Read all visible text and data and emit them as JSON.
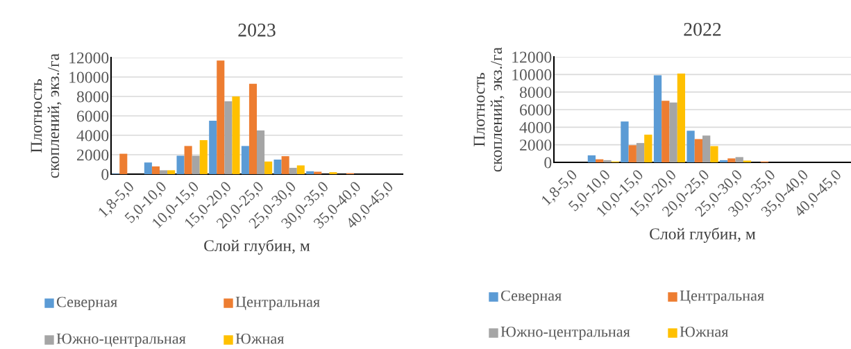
{
  "chart_data": [
    {
      "type": "bar",
      "title": "2023",
      "xlabel": "Слой глубин, м",
      "ylabel": "Плотность\nскоплений, экз./га",
      "categories": [
        "1,8-5,0",
        "5,0-10,0",
        "10,0-15,0",
        "15,0-20,0",
        "20,0-25,0",
        "25,0-30,0",
        "30,0-35,0",
        "35,0-40,0",
        "40,0-45,0"
      ],
      "series": [
        {
          "name": "Северная",
          "color": "#5b9bd5",
          "values": [
            50,
            1200,
            1900,
            5500,
            2900,
            1500,
            300,
            0,
            0
          ]
        },
        {
          "name": "Центральная",
          "color": "#ed7d31",
          "values": [
            2100,
            800,
            2900,
            11700,
            9300,
            1850,
            250,
            100,
            0
          ]
        },
        {
          "name": "Южно-центральная",
          "color": "#a5a5a5",
          "values": [
            null,
            400,
            1900,
            7500,
            4500,
            650,
            null,
            0,
            0
          ]
        },
        {
          "name": "Южная",
          "color": "#ffc000",
          "values": [
            0,
            400,
            3500,
            8000,
            1300,
            900,
            200,
            0,
            0
          ]
        }
      ],
      "ylim": [
        0,
        12000
      ],
      "yticks": [
        0,
        2000,
        4000,
        6000,
        8000,
        10000,
        12000
      ],
      "grid": "y",
      "legend": "bottom"
    },
    {
      "type": "bar",
      "title": "2022",
      "xlabel": "Слой глубин, м",
      "ylabel": "Плотность\nскоплений, экз./га",
      "categories": [
        "1,8-5,0",
        "5,0-10,0",
        "10,0-15,0",
        "15,0-20,0",
        "20,0-25,0",
        "25,0-30,0",
        "30,0-35,0",
        "35,0-40,0",
        "40,0-45,0"
      ],
      "series": [
        {
          "name": "Северная",
          "color": "#5b9bd5",
          "values": [
            0,
            800,
            4650,
            9900,
            3600,
            250,
            0,
            0,
            0
          ]
        },
        {
          "name": "Центральная",
          "color": "#ed7d31",
          "values": [
            0,
            350,
            1950,
            7000,
            2650,
            450,
            100,
            0,
            0
          ]
        },
        {
          "name": "Южно-центральная",
          "color": "#a5a5a5",
          "values": [
            0,
            250,
            2200,
            6800,
            3050,
            600,
            null,
            0,
            0
          ]
        },
        {
          "name": "Южная",
          "color": "#ffc000",
          "values": [
            0,
            100,
            3150,
            10100,
            1850,
            200,
            0,
            0,
            0
          ]
        }
      ],
      "ylim": [
        0,
        12000
      ],
      "yticks": [
        0,
        2000,
        4000,
        6000,
        8000,
        10000,
        12000
      ],
      "grid": "y",
      "legend": "bottom"
    }
  ]
}
